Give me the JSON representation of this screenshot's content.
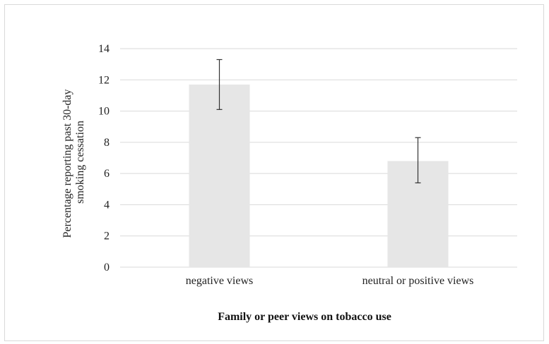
{
  "chart_data": {
    "type": "bar",
    "categories": [
      "negative views",
      "neutral or positive views"
    ],
    "values": [
      11.7,
      6.8
    ],
    "error_bars": [
      {
        "low": 10.1,
        "high": 13.3
      },
      {
        "low": 5.4,
        "high": 8.3
      }
    ],
    "xlabel": "Family or peer views on tobacco use",
    "ylabel_lines": [
      "Percentage reporting past 30-day",
      "smoking cessation"
    ],
    "ylim": [
      0,
      14
    ],
    "yticks": [
      "0",
      "2",
      "4",
      "6",
      "8",
      "10",
      "12",
      "14"
    ],
    "grid": true,
    "colors": {
      "bar": "#e6e6e6",
      "grid": "#d9d9d9",
      "errorbar": "#333333"
    }
  }
}
